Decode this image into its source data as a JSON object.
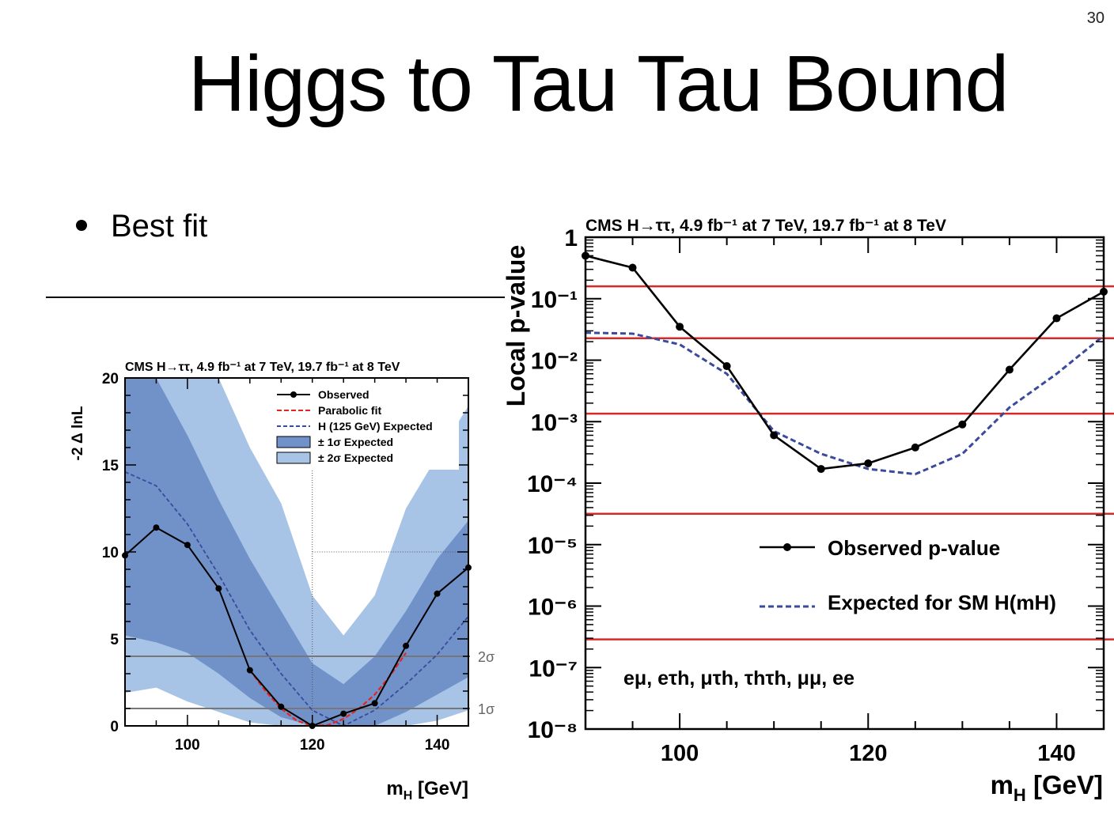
{
  "slide": {
    "number": "30",
    "title": "Higgs to Tau Tau Bound",
    "bullet": "Best fit"
  },
  "chart_data": [
    {
      "type": "line",
      "header": "CMS H→ττ, 4.9 fb⁻¹ at 7 TeV, 19.7 fb⁻¹ at 8 TeV",
      "xlabel": "m",
      "xlabel_sub": "H",
      "xlabel_unit": " [GeV]",
      "ylabel": "-2 Δ lnL",
      "xlim": [
        90,
        145
      ],
      "ylim": [
        0,
        20
      ],
      "x_ticks": [
        100,
        120,
        140
      ],
      "y_ticks": [
        0,
        5,
        10,
        15,
        20
      ],
      "legend_position": "top-right",
      "series": [
        {
          "name": "Observed",
          "color": "#000000",
          "style": "solid-markers",
          "x": [
            90,
            95,
            100,
            105,
            110,
            115,
            120,
            125,
            130,
            135,
            140,
            145
          ],
          "y": [
            9.8,
            11.4,
            10.4,
            7.9,
            3.2,
            1.1,
            0.0,
            0.7,
            1.3,
            4.6,
            7.6,
            9.1
          ]
        },
        {
          "name": "Parabolic fit",
          "color": "#e8231f",
          "style": "dashed",
          "x": [
            110,
            112.5,
            115,
            117.5,
            120,
            122.5,
            125,
            127.5,
            130,
            132.5,
            135
          ],
          "y": [
            3.2,
            2.0,
            1.0,
            0.3,
            0.0,
            0.05,
            0.4,
            1.0,
            1.8,
            2.9,
            4.2
          ]
        },
        {
          "name": "H (125 GeV) Expected",
          "color": "#3a4a9c",
          "style": "dashed",
          "x": [
            90,
            95,
            100,
            105,
            110,
            115,
            120,
            125,
            130,
            135,
            140,
            145
          ],
          "y": [
            14.6,
            13.8,
            11.6,
            8.7,
            5.5,
            3.0,
            0.9,
            0.0,
            0.9,
            2.4,
            4.1,
            6.3
          ]
        }
      ],
      "bands": [
        {
          "name": "± 2σ Expected",
          "color": "#a7c4e6",
          "x": [
            90,
            95,
            100,
            105,
            110,
            115,
            120,
            125,
            130,
            135,
            140,
            145
          ],
          "low": [
            0,
            0,
            0,
            0,
            0,
            0,
            0,
            0,
            0,
            0,
            0,
            0
          ],
          "high": [
            20,
            20,
            20,
            20,
            16,
            12.8,
            7.5,
            5.2,
            7.5,
            12.5,
            15.5,
            18.4
          ]
        },
        {
          "name": "± 1σ Expected",
          "color": "#7191c9",
          "x": [
            90,
            95,
            100,
            105,
            110,
            115,
            120,
            125,
            130,
            135,
            140,
            145
          ],
          "low": [
            5.2,
            4.8,
            4.2,
            3.0,
            1.6,
            0.5,
            0.0,
            0.0,
            0.0,
            0.8,
            1.8,
            2.8
          ],
          "high": [
            20,
            20,
            16.7,
            13.0,
            9.6,
            6.6,
            3.6,
            2.4,
            4.0,
            6.6,
            9.6,
            11.8
          ]
        }
      ],
      "bands_lower_2sigma": [
        1.9,
        2.2,
        1.4,
        0.8,
        0.2,
        0.0,
        0.0,
        0.0,
        0.0,
        0.0,
        0.3,
        0.9
      ],
      "reference_lines": [
        {
          "y": 4,
          "label": "2σ"
        },
        {
          "y": 1,
          "label": "1σ"
        }
      ]
    },
    {
      "type": "line",
      "header": "CMS H→ττ, 4.9 fb⁻¹ at 7 TeV, 19.7 fb⁻¹ at 8 TeV",
      "xlabel": "m",
      "xlabel_sub": "H",
      "xlabel_unit": " [GeV]",
      "ylabel": "Local p-value",
      "xlim": [
        90,
        145
      ],
      "ylim": [
        1e-08,
        1
      ],
      "y_scale": "log",
      "x_ticks": [
        100,
        120,
        140
      ],
      "y_tick_labels": [
        "1",
        "10⁻¹",
        "10⁻²",
        "10⁻³",
        "10⁻⁴",
        "10⁻⁵",
        "10⁻⁶",
        "10⁻⁷",
        "10⁻⁸"
      ],
      "legend_position": "bottom-right",
      "annotation": "eμ, eτh, μτh, τhτh, μμ, ee",
      "series": [
        {
          "name": "Observed p-value",
          "color": "#000000",
          "style": "solid-markers",
          "x": [
            90,
            95,
            100,
            105,
            110,
            115,
            120,
            125,
            130,
            135,
            140,
            145
          ],
          "y": [
            0.5,
            0.32,
            0.035,
            0.008,
            0.0006,
            0.00017,
            0.00021,
            0.00038,
            0.0009,
            0.007,
            0.048,
            0.13
          ]
        },
        {
          "name": "Expected for SM H(mH)",
          "color": "#3a4a9c",
          "style": "dashed",
          "x": [
            90,
            95,
            100,
            105,
            110,
            115,
            120,
            125,
            130,
            135,
            140,
            145
          ],
          "y": [
            0.028,
            0.027,
            0.018,
            0.006,
            0.0007,
            0.0003,
            0.00017,
            0.00014,
            0.0003,
            0.0017,
            0.006,
            0.025
          ]
        }
      ],
      "reference_lines_color": "#d42a28",
      "reference_lines": [
        0.1587,
        0.02275,
        0.00135,
        3.17e-05,
        2.87e-07
      ]
    }
  ]
}
